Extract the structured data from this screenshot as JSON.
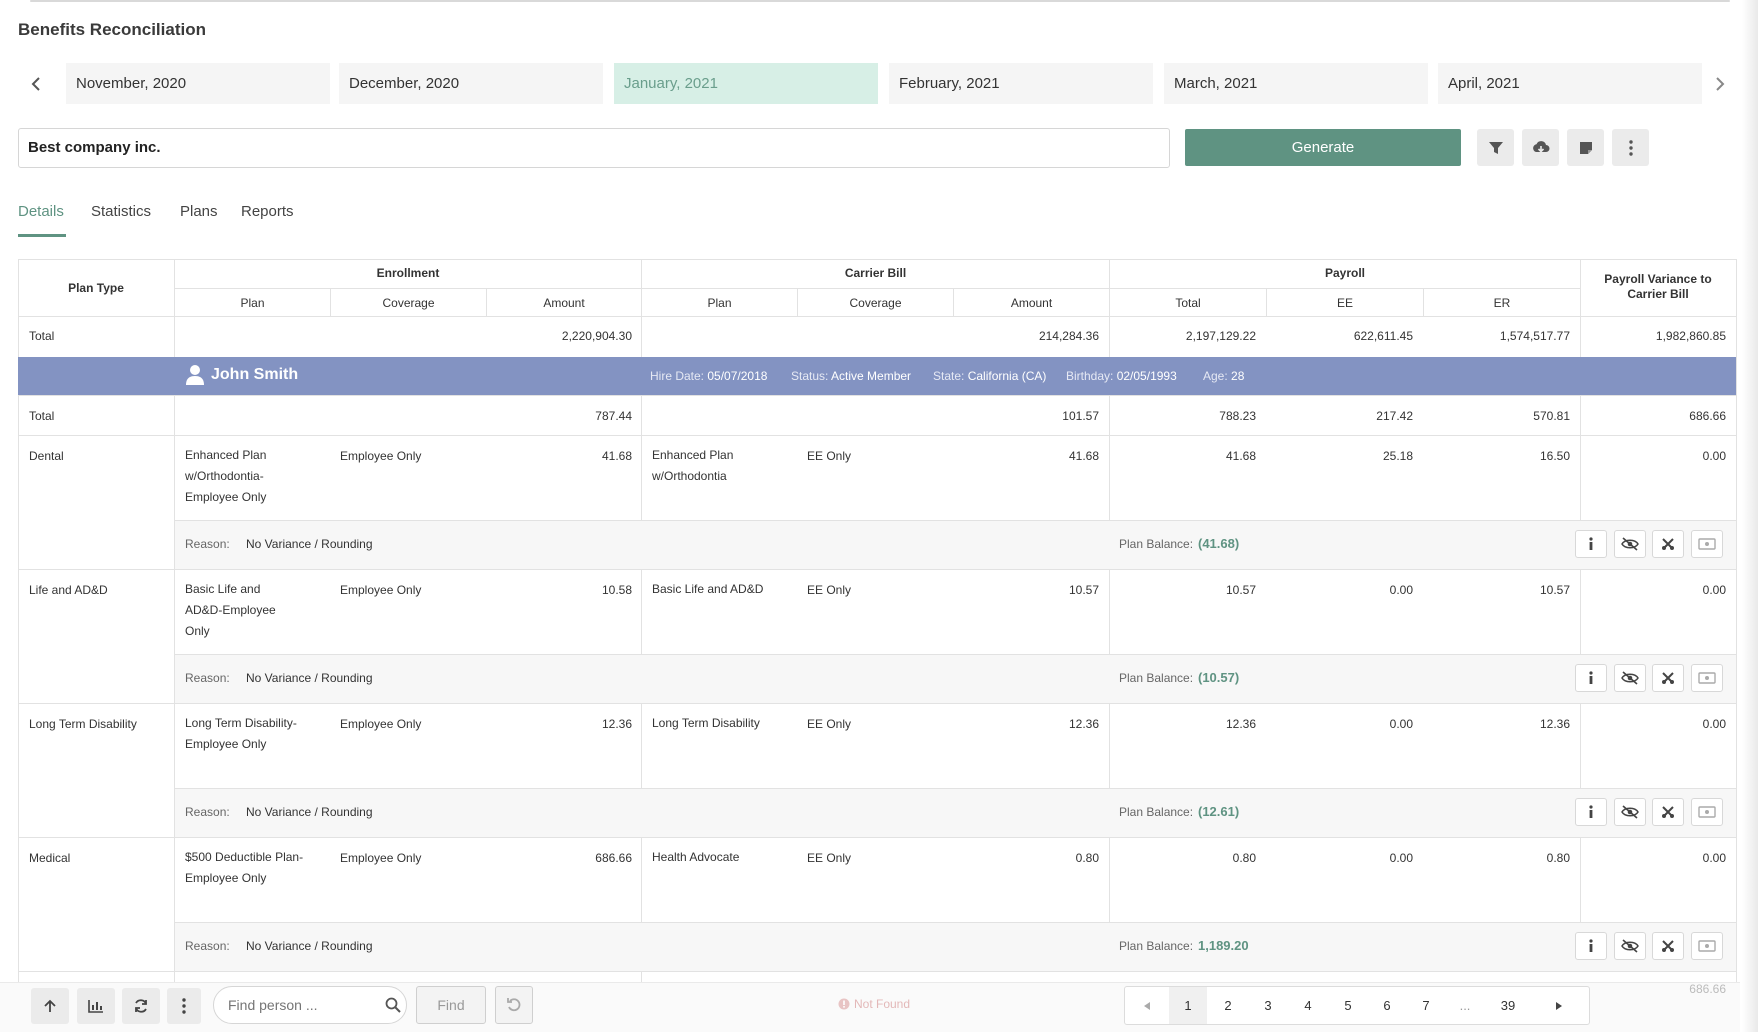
{
  "page_title": "Benefits Reconciliation",
  "months": [
    "November, 2020",
    "December, 2020",
    "January, 2021",
    "February, 2021",
    "March, 2021",
    "April, 2021"
  ],
  "active_month_index": 2,
  "icons": {
    "prev": "chevron-left-icon",
    "next": "chevron-right-icon",
    "filter": "filter-icon",
    "download": "cloud-download-icon",
    "note": "note-icon",
    "more": "more-vertical-icon",
    "person": "user-icon",
    "info": "info-icon",
    "hide": "eye-off-icon",
    "cut": "scissors-icon",
    "money": "money-icon",
    "up": "arrow-up-icon",
    "chart": "bar-chart-icon",
    "refresh": "refresh-icon",
    "search": "search-icon",
    "undo": "undo-icon"
  },
  "company": "Best company inc.",
  "generate_label": "Generate",
  "tabs": [
    "Details",
    "Statistics",
    "Plans",
    "Reports"
  ],
  "table": {
    "headers": {
      "plan_type": "Plan Type",
      "enrollment": "Enrollment",
      "carrier_bill": "Carrier Bill",
      "payroll": "Payroll",
      "variance": "Payroll Variance to Carrier Bill",
      "plan": "Plan",
      "coverage": "Coverage",
      "amount": "Amount",
      "total": "Total",
      "ee": "EE",
      "er": "ER"
    },
    "grand_total": {
      "label": "Total",
      "enroll_amount": "2,220,904.30",
      "carrier_amount": "214,284.36",
      "payroll_total": "2,197,129.22",
      "ee": "622,611.45",
      "er": "1,574,517.77",
      "variance": "1,982,860.85"
    },
    "person": {
      "name": "John Smith",
      "hire_label": "Hire Date:",
      "hire": "05/07/2018",
      "status_label": "Status:",
      "status": "Active Member",
      "state_label": "State:",
      "state": "California (CA)",
      "birthday_label": "Birthday:",
      "birthday": "02/05/1993",
      "age_label": "Age:",
      "age": "28"
    },
    "person_total": {
      "label": "Total",
      "enroll_amount": "787.44",
      "carrier_amount": "101.57",
      "payroll_total": "788.23",
      "ee": "217.42",
      "er": "570.81",
      "variance": "686.66"
    },
    "reason_label": "Reason:",
    "balance_label": "Plan Balance:",
    "rows": [
      {
        "plan_type": "Dental",
        "enroll_plan": "Enhanced Plan w/Orthodontia-Employee Only",
        "enroll_coverage": "Employee Only",
        "enroll_amount": "41.68",
        "carrier_plan": "Enhanced Plan w/Orthodontia",
        "carrier_coverage": "EE Only",
        "carrier_amount": "41.68",
        "payroll_total": "41.68",
        "ee": "25.18",
        "er": "16.50",
        "variance": "0.00",
        "reason": "No Variance / Rounding",
        "balance": "(41.68)"
      },
      {
        "plan_type": "Life and AD&D",
        "enroll_plan": "Basic Life and AD&D-Employee Only",
        "enroll_coverage": "Employee Only",
        "enroll_amount": "10.58",
        "carrier_plan": "Basic Life and AD&D",
        "carrier_coverage": "EE Only",
        "carrier_amount": "10.57",
        "payroll_total": "10.57",
        "ee": "0.00",
        "er": "10.57",
        "variance": "0.00",
        "reason": "No Variance / Rounding",
        "balance": "(10.57)"
      },
      {
        "plan_type": "Long Term Disability",
        "enroll_plan": "Long Term Disability-Employee Only",
        "enroll_coverage": "Employee Only",
        "enroll_amount": "12.36",
        "carrier_plan": "Long Term Disability",
        "carrier_coverage": "EE Only",
        "carrier_amount": "12.36",
        "payroll_total": "12.36",
        "ee": "0.00",
        "er": "12.36",
        "variance": "0.00",
        "reason": "No Variance / Rounding",
        "balance": "(12.61)"
      },
      {
        "plan_type": "Medical",
        "enroll_plan": "$500 Deductible Plan-Employee Only",
        "enroll_coverage": "Employee Only",
        "enroll_amount": "686.66",
        "carrier_plan": "Health Advocate",
        "carrier_coverage": "EE Only",
        "carrier_amount": "0.80",
        "payroll_total": "0.80",
        "ee": "0.00",
        "er": "0.80",
        "variance": "0.00",
        "reason": "No Variance / Rounding",
        "balance": "1,189.20"
      }
    ],
    "partial_variance": "686.66"
  },
  "bottom": {
    "find_placeholder": "Find person ...",
    "find_label": "Find",
    "not_found": "Not Found",
    "pages": [
      "1",
      "2",
      "3",
      "4",
      "5",
      "6",
      "7",
      "...",
      "39"
    ],
    "active_page": "1"
  }
}
